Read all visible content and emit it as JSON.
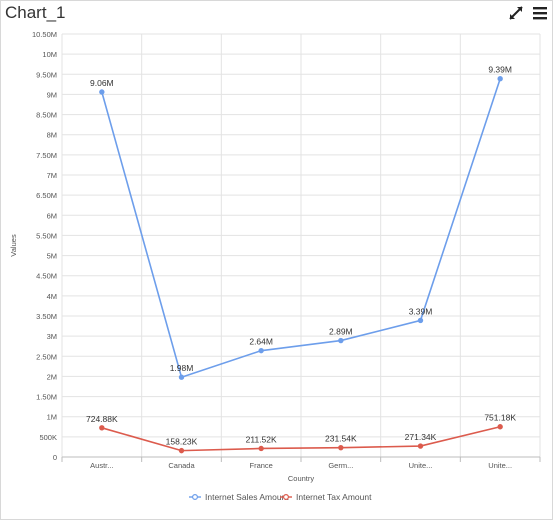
{
  "widget": {
    "title": "Chart_1",
    "expand_icon": "expand-icon",
    "menu_icon": "hamburger-menu-icon"
  },
  "colors": {
    "series_sales": "#6d9eeb",
    "series_tax": "#dc5b4d",
    "grid": "#e3e3e3",
    "axis_text": "#555555"
  },
  "chart_data": {
    "type": "line",
    "title": "",
    "xlabel": "Country",
    "ylabel": "Values",
    "ylim": [
      0,
      10500000
    ],
    "y_step": 500000,
    "y_tick_labels": [
      "0",
      "500K",
      "1M",
      "1.50M",
      "2M",
      "2.50M",
      "3M",
      "3.50M",
      "4M",
      "4.50M",
      "5M",
      "5.50M",
      "6M",
      "6.50M",
      "7M",
      "7.50M",
      "8M",
      "8.50M",
      "9M",
      "9.50M",
      "10M",
      "10.50M"
    ],
    "categories": [
      "Austr...",
      "Canada",
      "France",
      "Germ...",
      "Unite...",
      "Unite..."
    ],
    "grid": true,
    "legend_position": "bottom",
    "series": [
      {
        "name": "Internet Sales Amount",
        "values": [
          9060000,
          1980000,
          2640000,
          2890000,
          3390000,
          9390000
        ],
        "labels": [
          "9.06M",
          "1.98M",
          "2.64M",
          "2.89M",
          "3.39M",
          "9.39M"
        ]
      },
      {
        "name": "Internet Tax Amount",
        "values": [
          724880,
          158230,
          211520,
          231540,
          271340,
          751180
        ],
        "labels": [
          "724.88K",
          "158.23K",
          "211.52K",
          "231.54K",
          "271.34K",
          "751.18K"
        ]
      }
    ]
  }
}
